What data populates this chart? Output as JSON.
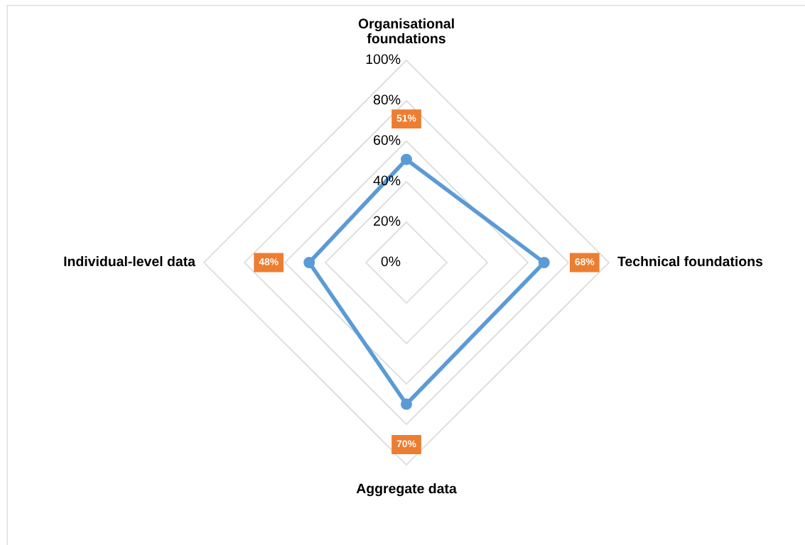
{
  "chart_data": {
    "type": "radar",
    "categories": [
      "Organisational\nfoundations",
      "Technical foundations",
      "Aggregate data",
      "Individual-level data"
    ],
    "series": [
      {
        "color": "#5b9bd5",
        "values": [
          51,
          68,
          70,
          48
        ]
      }
    ],
    "ylim": [
      0,
      100
    ],
    "yticks": [
      {
        "value": 0,
        "label": "0%"
      },
      {
        "value": 20,
        "label": "20%"
      },
      {
        "value": 40,
        "label": "40%"
      },
      {
        "value": 60,
        "label": "60%"
      },
      {
        "value": 80,
        "label": "80%"
      },
      {
        "value": 100,
        "label": "100%"
      }
    ],
    "value_labels": [
      "51%",
      "68%",
      "70%",
      "48%"
    ],
    "marker": "circle",
    "line_style": "solid",
    "grid": true
  }
}
